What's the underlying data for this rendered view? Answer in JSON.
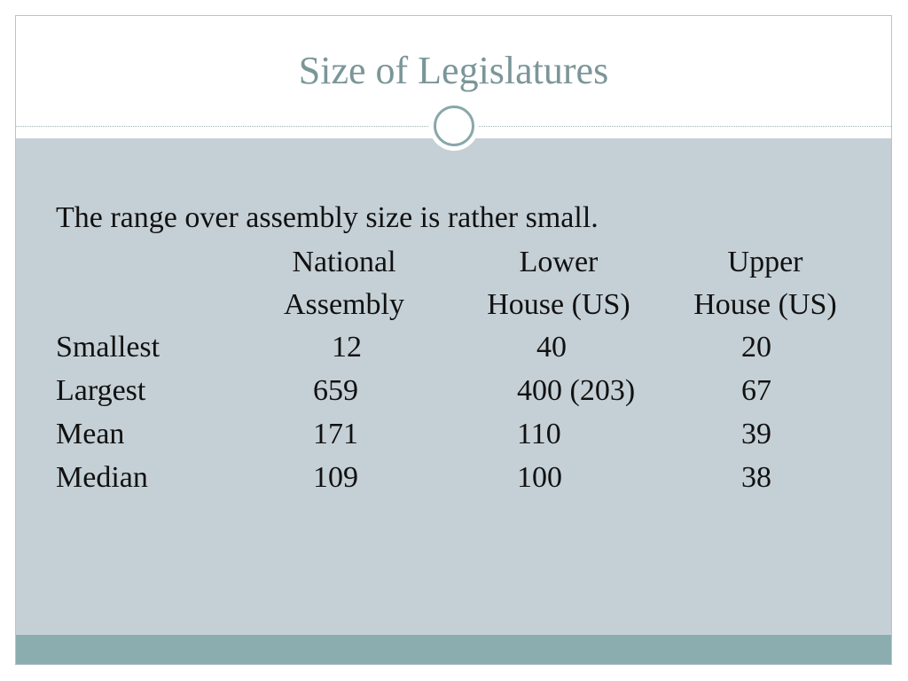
{
  "slide": {
    "title": "Size of Legislatures",
    "intro": "The range over assembly size is rather small."
  },
  "table": {
    "headers": [
      {
        "line1": "National",
        "line2": "Assembly"
      },
      {
        "line1": "Lower",
        "line2": "House (US)"
      },
      {
        "line1": "Upper",
        "line2": "House (US)"
      }
    ],
    "rows": [
      {
        "label": "Smallest",
        "values": [
          "12",
          "40",
          "20"
        ]
      },
      {
        "label": "Largest",
        "values": [
          "659",
          "400 (203)",
          "67"
        ]
      },
      {
        "label": "Mean",
        "values": [
          "171",
          "110",
          "39"
        ]
      },
      {
        "label": "Median",
        "values": [
          "109",
          "100",
          "38"
        ]
      }
    ]
  },
  "colors": {
    "title": "#7b9699",
    "body_background": "#c5d0d6",
    "footer_bar": "#8badaf",
    "ornament_ring": "#8aa7aa"
  }
}
